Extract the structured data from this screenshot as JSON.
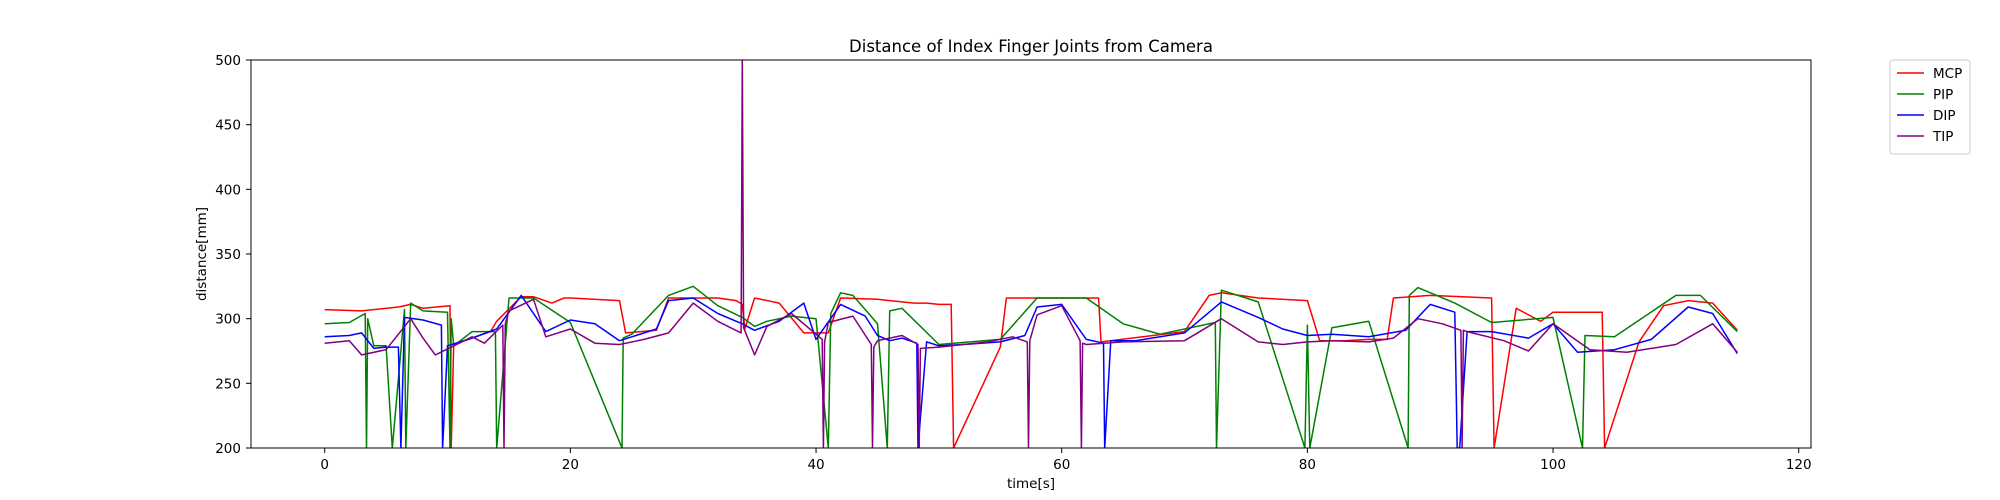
{
  "chart_data": {
    "type": "line",
    "title": "Distance of Index Finger Joints from Camera",
    "xlabel": "time[s]",
    "ylabel": "distance[mm]",
    "xlim": [
      -6,
      121
    ],
    "ylim": [
      200,
      500
    ],
    "xticks": [
      0,
      20,
      40,
      60,
      80,
      100,
      120
    ],
    "yticks": [
      200,
      250,
      300,
      350,
      400,
      450,
      500
    ],
    "grid": false,
    "legend_position": "outside-top-right",
    "series": [
      {
        "name": "MCP",
        "color": "#ff0000",
        "x": [
          0,
          3,
          6,
          7,
          8,
          10.2,
          10.3,
          10.5,
          13.5,
          14,
          16,
          17,
          18.5,
          19.5,
          20,
          24,
          24.5,
          27,
          28,
          31,
          32,
          33.5,
          34,
          34.2,
          35,
          37,
          39,
          41,
          42,
          45,
          46,
          48,
          49,
          50,
          51,
          51.2,
          55,
          55.5,
          58,
          63,
          63.2,
          70,
          72,
          73,
          76,
          80,
          81,
          83,
          85,
          86.5,
          87,
          90,
          95,
          95.2,
          97,
          99,
          100,
          104,
          104.2,
          107,
          109,
          111,
          113,
          115
        ],
        "y": [
          307,
          306,
          309,
          311,
          308,
          310,
          200,
          280,
          290,
          298,
          317,
          317,
          312,
          316,
          316,
          314,
          289,
          291,
          316,
          316,
          316,
          314,
          311,
          292,
          316,
          312,
          289,
          289,
          316,
          315,
          314,
          312,
          312,
          311,
          311,
          200,
          278,
          316,
          316,
          316,
          282,
          290,
          318,
          320,
          316,
          314,
          283,
          283,
          284,
          284,
          316,
          318,
          316,
          200,
          308,
          298,
          305,
          305,
          200,
          282,
          310,
          314,
          312,
          291
        ]
      },
      {
        "name": "PIP",
        "color": "#008000",
        "x": [
          0,
          2,
          3.3,
          3.4,
          3.5,
          4,
          5,
          5.5,
          6.5,
          6.6,
          7,
          8,
          10,
          10.2,
          10.3,
          10.5,
          12,
          13.9,
          14,
          15,
          17,
          20,
          24.2,
          24.3,
          25,
          28,
          30,
          32,
          34,
          35,
          36,
          38,
          40,
          41,
          41.2,
          42,
          43,
          45,
          45.8,
          46,
          47,
          50,
          55,
          58,
          62,
          65,
          68,
          72.5,
          72.6,
          73,
          76,
          79.8,
          80,
          80.2,
          82,
          85,
          88.2,
          88.3,
          89,
          92,
          95,
          100,
          102.4,
          102.6,
          105,
          110,
          112,
          115
        ],
        "y": [
          296,
          297,
          304,
          200,
          300,
          279,
          279,
          200,
          307,
          200,
          312,
          306,
          305,
          200,
          300,
          279,
          290,
          290,
          200,
          316,
          316,
          297,
          200,
          285,
          288,
          318,
          325,
          310,
          301,
          294,
          298,
          302,
          300,
          200,
          304,
          320,
          318,
          296,
          200,
          306,
          308,
          280,
          284,
          316,
          316,
          296,
          288,
          297,
          200,
          322,
          313,
          200,
          295,
          200,
          293,
          298,
          200,
          318,
          324,
          312,
          297,
          301,
          200,
          287,
          286,
          318,
          318,
          290
        ]
      },
      {
        "name": "DIP",
        "color": "#0000ff",
        "x": [
          0,
          2,
          3,
          4,
          5,
          6,
          6.2,
          6.5,
          8,
          9.5,
          9.6,
          10,
          12,
          14,
          16,
          18,
          20,
          22,
          24,
          25,
          27,
          28,
          30,
          32,
          34,
          35,
          37,
          39,
          40,
          42,
          44,
          45,
          46,
          47,
          48.2,
          48.3,
          49,
          50,
          52,
          55,
          57,
          58,
          60,
          62,
          63.4,
          63.5,
          64,
          66,
          70,
          73,
          76,
          78,
          80,
          82,
          85,
          88,
          90,
          92,
          92.2,
          92.4,
          93,
          95,
          98,
          100,
          102,
          105,
          108,
          111,
          113,
          115
        ],
        "y": [
          286,
          287,
          289,
          277,
          278,
          278,
          200,
          301,
          299,
          295,
          200,
          279,
          285,
          292,
          318,
          290,
          299,
          296,
          283,
          286,
          292,
          314,
          316,
          304,
          296,
          291,
          298,
          312,
          284,
          311,
          302,
          287,
          283,
          285,
          281,
          200,
          282,
          279,
          280,
          282,
          287,
          309,
          311,
          284,
          281,
          200,
          283,
          283,
          289,
          313,
          301,
          292,
          287,
          288,
          286,
          291,
          311,
          305,
          200,
          200,
          290,
          290,
          285,
          296,
          274,
          276,
          284,
          309,
          304,
          273
        ]
      },
      {
        "name": "TIP",
        "color": "#800080",
        "x": [
          0,
          2,
          3,
          5,
          7,
          8,
          9,
          12,
          13,
          14.5,
          14.6,
          14.7,
          15,
          17,
          18,
          20,
          22,
          24,
          26,
          28,
          30,
          32,
          33.9,
          34,
          34.1,
          35,
          36,
          38,
          40.5,
          40.6,
          40.7,
          41,
          43,
          44.5,
          44.6,
          44.7,
          45,
          47,
          48.3,
          48.4,
          48.5,
          50,
          54,
          56,
          57.2,
          57.3,
          57.4,
          58,
          60,
          61.5,
          61.6,
          61.7,
          62,
          65,
          70,
          73,
          76,
          78,
          80,
          82,
          85,
          87,
          89,
          91,
          92.5,
          92.6,
          92.7,
          93,
          96,
          98,
          100,
          103,
          106,
          110,
          113,
          115
        ],
        "y": [
          281,
          283,
          272,
          276,
          300,
          285,
          272,
          286,
          281,
          295,
          200,
          296,
          306,
          315,
          286,
          292,
          281,
          280,
          284,
          289,
          312,
          298,
          289,
          500,
          293,
          272,
          294,
          304,
          284,
          200,
          282,
          297,
          302,
          280,
          200,
          278,
          283,
          287,
          280,
          200,
          277,
          278,
          282,
          286,
          282,
          200,
          283,
          303,
          310,
          283,
          200,
          281,
          280,
          282,
          283,
          300,
          282,
          280,
          282,
          283,
          282,
          285,
          300,
          296,
          291,
          200,
          291,
          290,
          283,
          275,
          296,
          276,
          274,
          280,
          296,
          274
        ]
      }
    ]
  }
}
